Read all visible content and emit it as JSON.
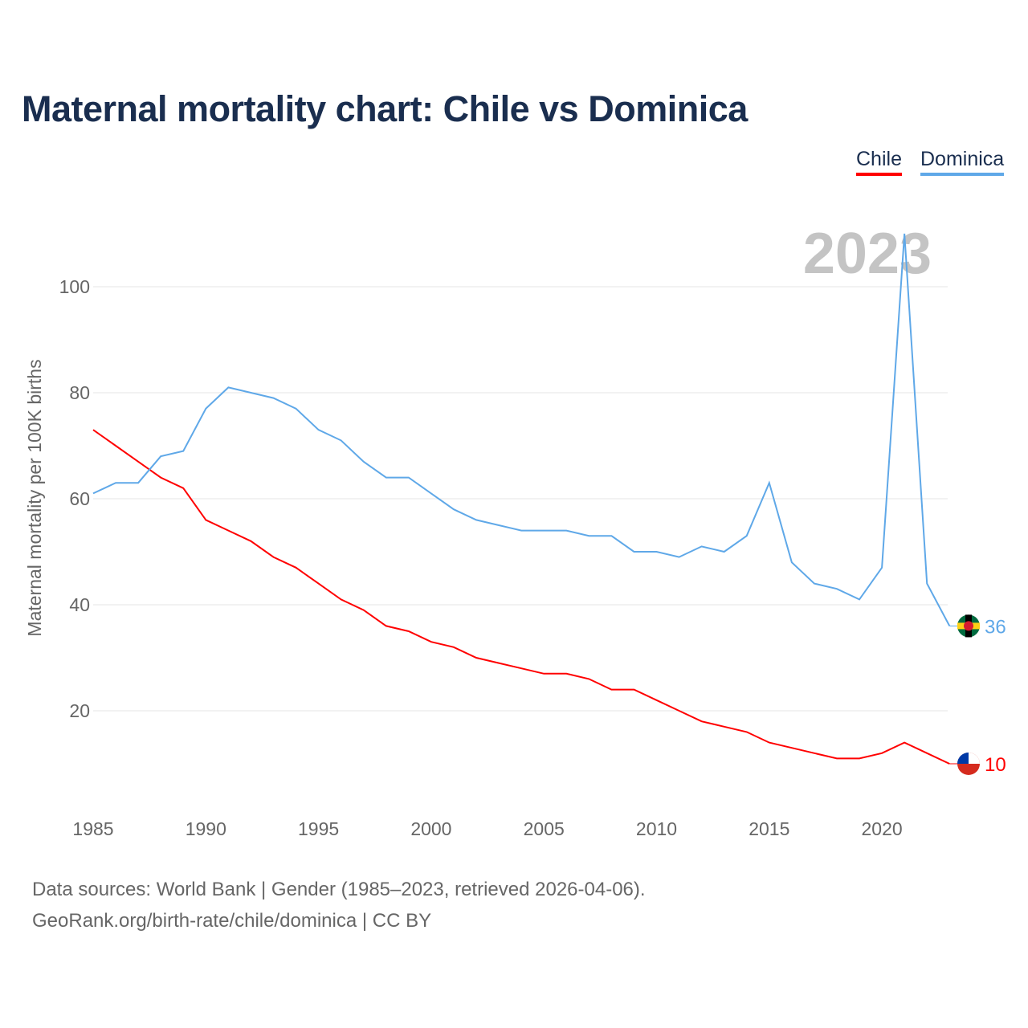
{
  "title": "Maternal mortality chart: Chile vs Dominica",
  "footer": {
    "line1": "Data sources: World Bank | Gender (1985–2023, retrieved 2026-04-06).",
    "line2": "GeoRank.org/birth-rate/chile/dominica | CC BY"
  },
  "chart_data": {
    "type": "line",
    "title": "Maternal mortality chart: Chile vs Dominica",
    "ylabel": "Maternal mortality per 100K births",
    "xlabel": "",
    "year_label": "2023",
    "ylim": [
      0,
      110
    ],
    "xlim": [
      1985,
      2023
    ],
    "x_ticks": [
      "1985",
      "1990",
      "1995",
      "2000",
      "2005",
      "2010",
      "2015",
      "2020"
    ],
    "y_ticks": [
      "20",
      "40",
      "60",
      "80",
      "100"
    ],
    "legend_position": "top-right",
    "x": [
      1985,
      1986,
      1987,
      1988,
      1989,
      1990,
      1991,
      1992,
      1993,
      1994,
      1995,
      1996,
      1997,
      1998,
      1999,
      2000,
      2001,
      2002,
      2003,
      2004,
      2005,
      2006,
      2007,
      2008,
      2009,
      2010,
      2011,
      2012,
      2013,
      2014,
      2015,
      2016,
      2017,
      2018,
      2019,
      2020,
      2021,
      2022,
      2023
    ],
    "series": [
      {
        "name": "Chile",
        "color": "#ff0000",
        "end_label": "10",
        "values": [
          73,
          70,
          67,
          64,
          62,
          56,
          54,
          52,
          49,
          47,
          44,
          41,
          39,
          36,
          35,
          33,
          32,
          30,
          29,
          28,
          27,
          27,
          26,
          24,
          24,
          22,
          20,
          18,
          17,
          16,
          14,
          13,
          12,
          11,
          11,
          12,
          14,
          12,
          10
        ]
      },
      {
        "name": "Dominica",
        "color": "#5fa8e8",
        "end_label": "36",
        "values": [
          61,
          63,
          63,
          68,
          69,
          77,
          81,
          80,
          79,
          77,
          73,
          71,
          67,
          64,
          64,
          61,
          58,
          56,
          55,
          54,
          54,
          54,
          53,
          53,
          50,
          50,
          49,
          51,
          50,
          53,
          63,
          48,
          44,
          43,
          41,
          47,
          110,
          44,
          36
        ]
      }
    ]
  }
}
